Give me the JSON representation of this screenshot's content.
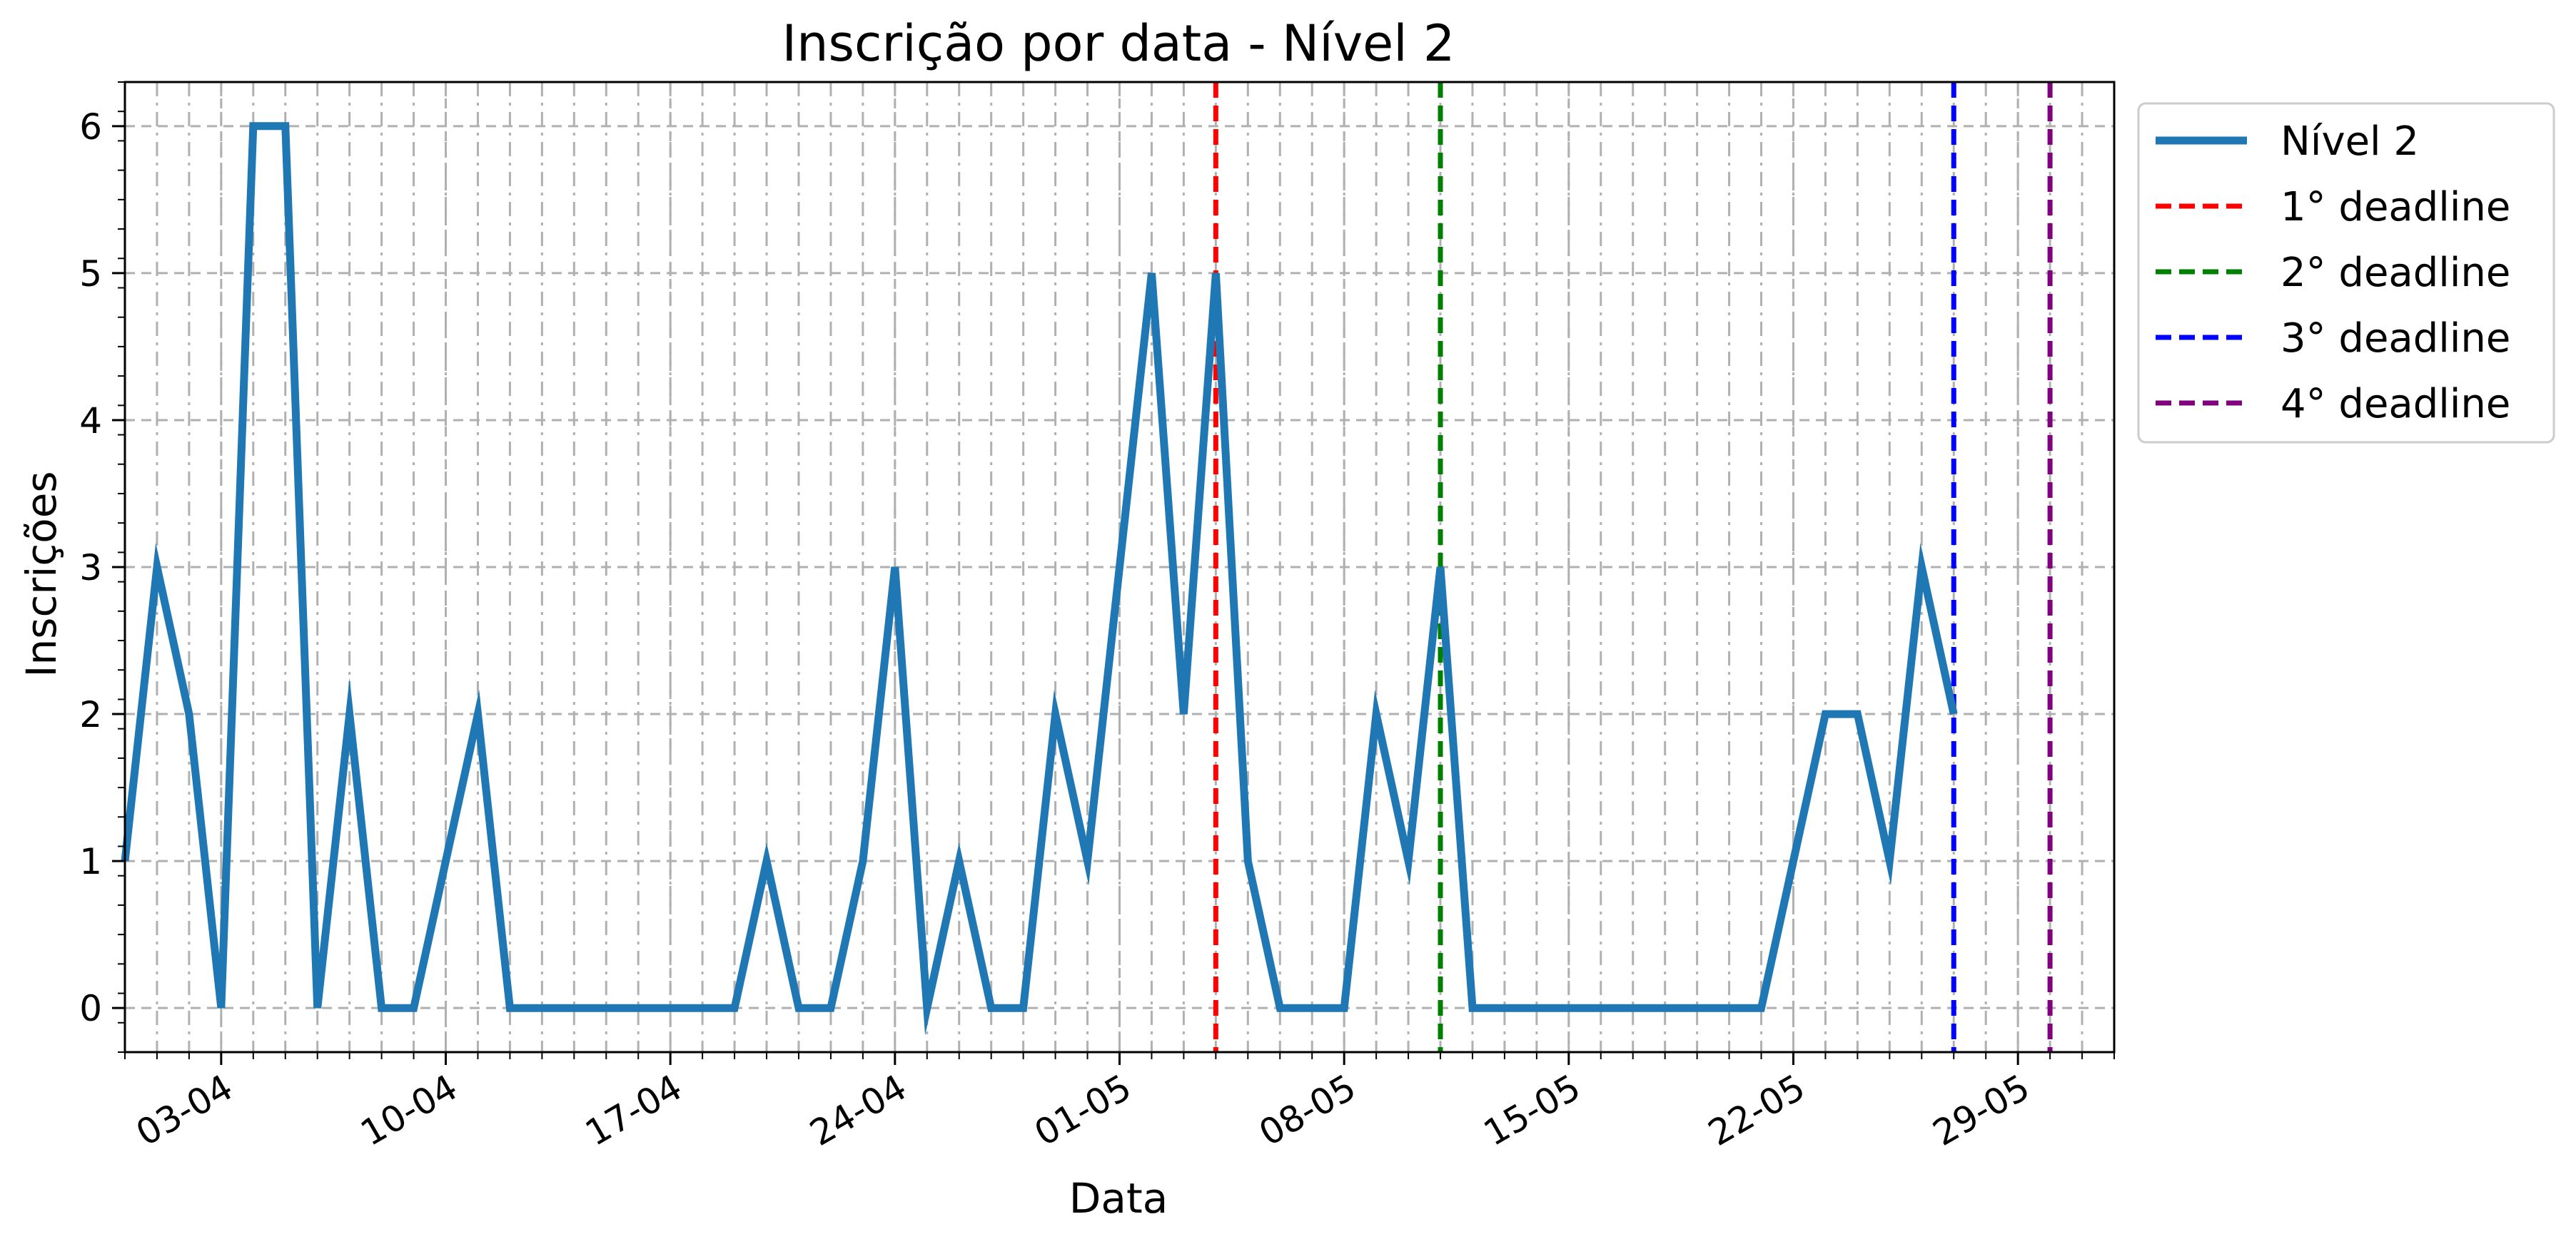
{
  "chart_data": {
    "type": "line",
    "title": "Inscrição por data - Nível 2",
    "xlabel": "Data",
    "ylabel": "Inscrições",
    "x_start": "2023-03-31",
    "x_end": "2023-06-01",
    "ylim": [
      -0.3,
      6.3
    ],
    "y_ticks": [
      0,
      1,
      2,
      3,
      4,
      5,
      6
    ],
    "y_minor_step": 0.2,
    "x_ticks": [
      {
        "date": "2023-04-03",
        "label": "03-04"
      },
      {
        "date": "2023-04-10",
        "label": "10-04"
      },
      {
        "date": "2023-04-17",
        "label": "17-04"
      },
      {
        "date": "2023-04-24",
        "label": "24-04"
      },
      {
        "date": "2023-05-01",
        "label": "01-05"
      },
      {
        "date": "2023-05-08",
        "label": "08-05"
      },
      {
        "date": "2023-05-15",
        "label": "15-05"
      },
      {
        "date": "2023-05-22",
        "label": "22-05"
      },
      {
        "date": "2023-05-29",
        "label": "29-05"
      }
    ],
    "x_tick_rotation": 30,
    "grid": true,
    "minor_grid": "daily",
    "legend_position": "outside-top-right",
    "series": [
      {
        "name": "Nível 2",
        "color": "#1f77b4",
        "dates": [
          "2023-03-31",
          "2023-04-01",
          "2023-04-02",
          "2023-04-03",
          "2023-04-04",
          "2023-04-05",
          "2023-04-06",
          "2023-04-07",
          "2023-04-08",
          "2023-04-09",
          "2023-04-10",
          "2023-04-11",
          "2023-04-12",
          "2023-04-13",
          "2023-04-14",
          "2023-04-15",
          "2023-04-16",
          "2023-04-17",
          "2023-04-18",
          "2023-04-19",
          "2023-04-20",
          "2023-04-21",
          "2023-04-22",
          "2023-04-23",
          "2023-04-24",
          "2023-04-25",
          "2023-04-26",
          "2023-04-27",
          "2023-04-28",
          "2023-04-29",
          "2023-04-30",
          "2023-05-01",
          "2023-05-02",
          "2023-05-03",
          "2023-05-04",
          "2023-05-05",
          "2023-05-06",
          "2023-05-07",
          "2023-05-08",
          "2023-05-09",
          "2023-05-10",
          "2023-05-11",
          "2023-05-12",
          "2023-05-13",
          "2023-05-14",
          "2023-05-15",
          "2023-05-16",
          "2023-05-17",
          "2023-05-18",
          "2023-05-19",
          "2023-05-20",
          "2023-05-21",
          "2023-05-22",
          "2023-05-23",
          "2023-05-24",
          "2023-05-25",
          "2023-05-26",
          "2023-05-27"
        ],
        "values": [
          1,
          3,
          2,
          0,
          6,
          6,
          0,
          2,
          0,
          0,
          1,
          2,
          0,
          0,
          0,
          0,
          0,
          0,
          0,
          0,
          1,
          0,
          0,
          1,
          3,
          0,
          1,
          0,
          0,
          2,
          1,
          3,
          5,
          2,
          5,
          1,
          0,
          0,
          0,
          2,
          1,
          3,
          0,
          0,
          0,
          0,
          0,
          0,
          0,
          0,
          0,
          0,
          1,
          2,
          2,
          1,
          3,
          2
        ]
      }
    ],
    "vlines": [
      {
        "name": "1° deadline",
        "date": "2023-05-04",
        "color": "#ff0000"
      },
      {
        "name": "2° deadline",
        "date": "2023-05-11",
        "color": "#008000"
      },
      {
        "name": "3° deadline",
        "date": "2023-05-27",
        "color": "#0000ff"
      },
      {
        "name": "4° deadline",
        "date": "2023-05-30",
        "color": "#800080"
      }
    ]
  }
}
